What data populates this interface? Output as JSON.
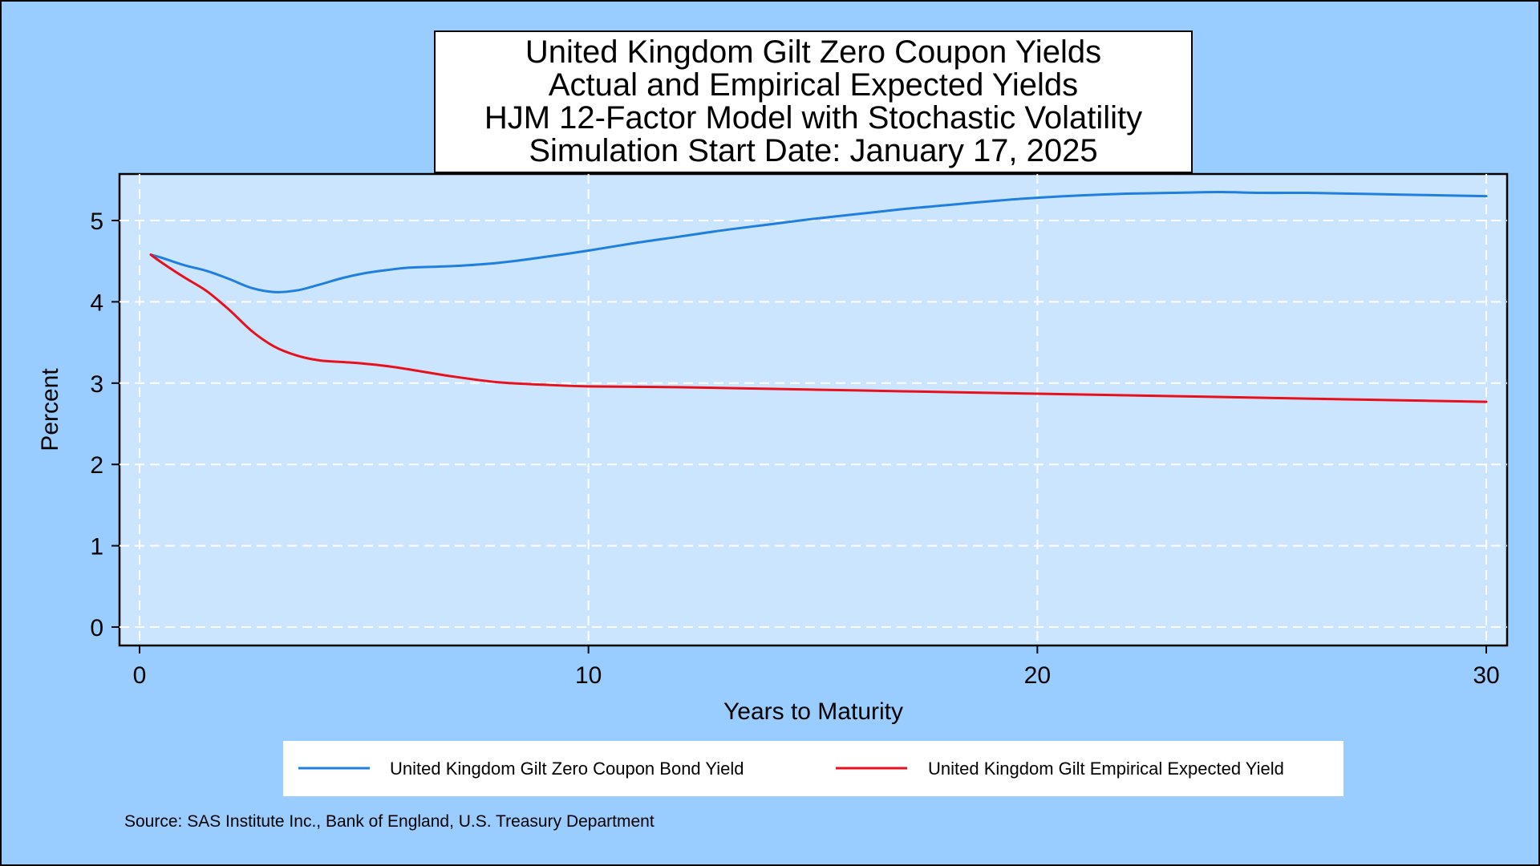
{
  "chart_data": {
    "type": "line",
    "title_lines": [
      "United Kingdom Gilt Zero Coupon Yields",
      "Actual and Empirical Expected Yields",
      "HJM 12-Factor Model with Stochastic Volatility",
      "Simulation Start Date: January 17, 2025"
    ],
    "xlabel": "Years to Maturity",
    "ylabel": "Percent",
    "xlim": [
      0,
      30
    ],
    "ylim": [
      0,
      5
    ],
    "xticks": [
      0,
      10,
      20,
      30
    ],
    "yticks": [
      0,
      1,
      2,
      3,
      4,
      5
    ],
    "grid": true,
    "legend_position": "bottom",
    "source": "Source: SAS Institute Inc., Bank of England, U.S. Treasury Department",
    "colors": {
      "page_background": "#99ccff",
      "plot_background": "#cce5ff",
      "grid": "#ffffff"
    },
    "series": [
      {
        "name": "United Kingdom Gilt Zero Coupon Bond Yield",
        "color": "#1f7fe0",
        "x": [
          0.25,
          0.5,
          1,
          1.5,
          2,
          2.5,
          3,
          3.5,
          4,
          4.5,
          5,
          5.5,
          6,
          7,
          8,
          9,
          10,
          11,
          12,
          13,
          14,
          15,
          16,
          17,
          18,
          19,
          20,
          21,
          22,
          23,
          24,
          25,
          26,
          27,
          28,
          29,
          30
        ],
        "y": [
          4.58,
          4.54,
          4.45,
          4.38,
          4.28,
          4.17,
          4.12,
          4.14,
          4.21,
          4.29,
          4.35,
          4.39,
          4.42,
          4.44,
          4.48,
          4.55,
          4.63,
          4.72,
          4.8,
          4.88,
          4.95,
          5.02,
          5.08,
          5.14,
          5.19,
          5.24,
          5.28,
          5.31,
          5.33,
          5.34,
          5.35,
          5.34,
          5.34,
          5.33,
          5.32,
          5.31,
          5.3
        ]
      },
      {
        "name": "United Kingdom Gilt Empirical Expected Yield",
        "color": "#e8101a",
        "x": [
          0.25,
          0.5,
          1,
          1.5,
          2,
          2.5,
          3,
          3.5,
          4,
          4.5,
          5,
          5.5,
          6,
          7,
          8,
          9,
          10,
          12,
          14,
          16,
          18,
          20,
          22,
          24,
          26,
          28,
          30
        ],
        "y": [
          4.58,
          4.48,
          4.3,
          4.13,
          3.9,
          3.64,
          3.45,
          3.34,
          3.28,
          3.26,
          3.24,
          3.21,
          3.17,
          3.08,
          3.01,
          2.98,
          2.96,
          2.95,
          2.93,
          2.91,
          2.89,
          2.87,
          2.85,
          2.83,
          2.81,
          2.79,
          2.77
        ]
      }
    ]
  }
}
